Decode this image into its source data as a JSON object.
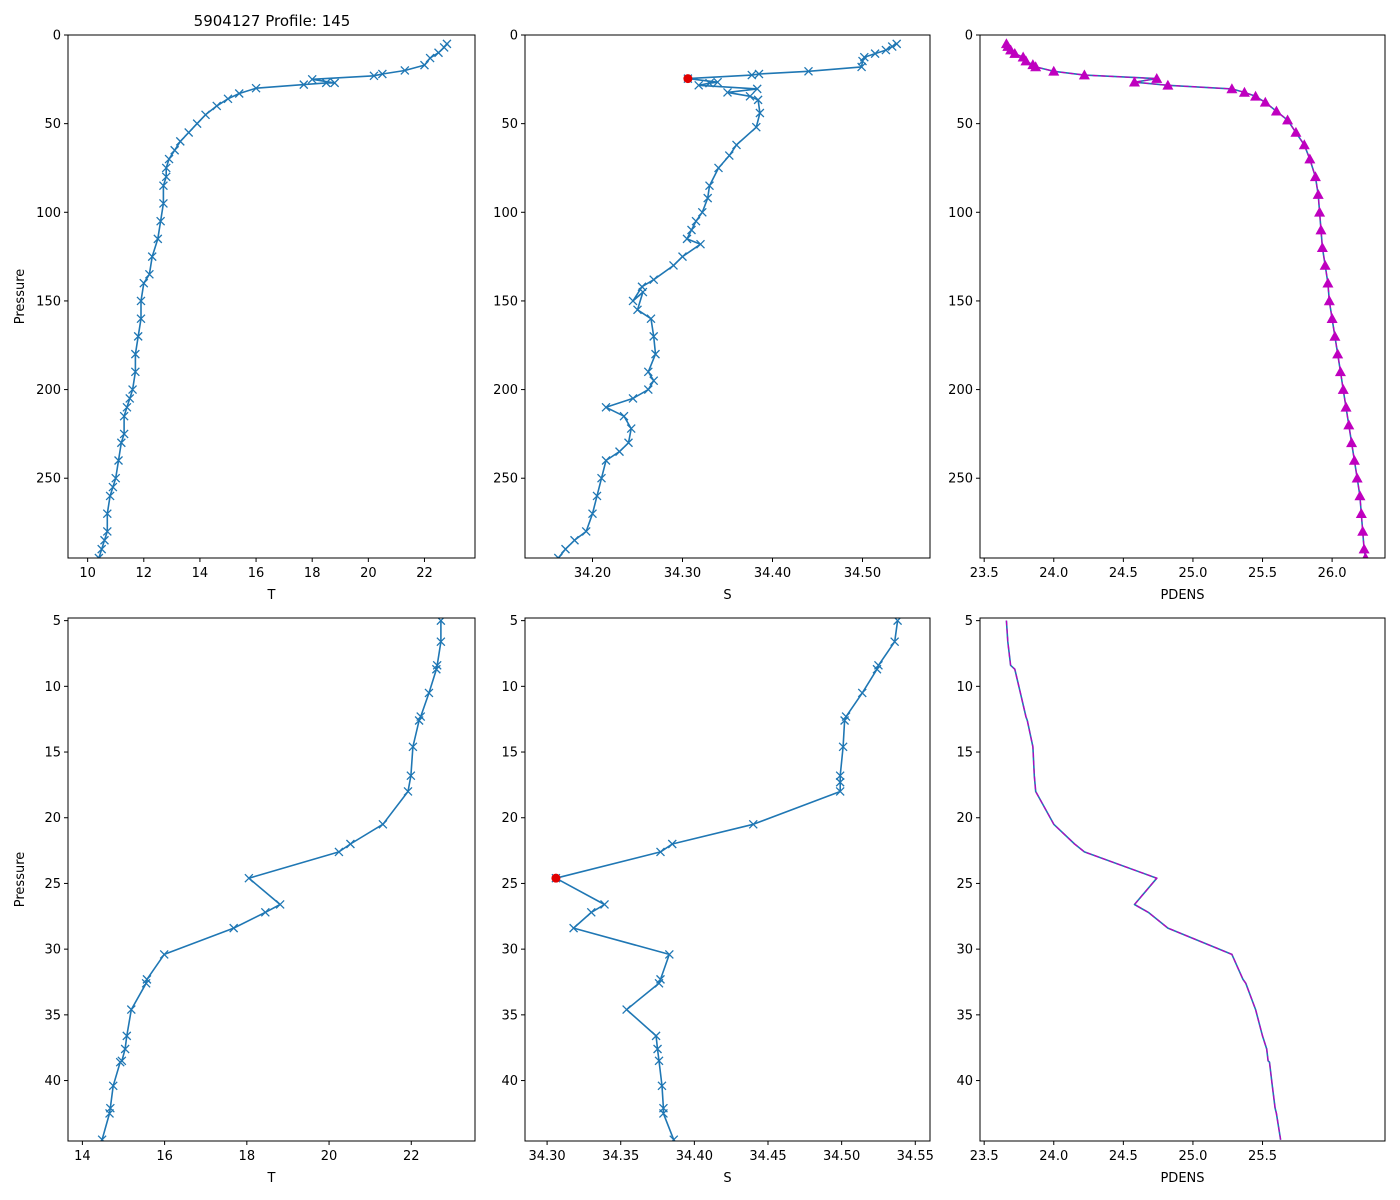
{
  "figure_title": "5904127 Profile: 145",
  "colors": {
    "line": "#1f77b4",
    "highlight": "#e00000",
    "pdens_marker": "#bf00bf"
  },
  "chart_data": [
    {
      "id": "top-T",
      "type": "line",
      "marker": "x",
      "title": "5904127 Profile: 145",
      "xlabel": "T",
      "ylabel": "Pressure",
      "xlim": [
        9.3,
        23.8
      ],
      "ylim": [
        295,
        0
      ],
      "y_inverted": true,
      "xticks": [
        10,
        12,
        14,
        16,
        18,
        20,
        22
      ],
      "yticks": [
        0,
        50,
        100,
        150,
        200,
        250
      ],
      "series": [
        {
          "name": "T",
          "x": [
            22.8,
            22.7,
            22.5,
            22.2,
            22.0,
            21.3,
            20.5,
            20.2,
            18.0,
            18.8,
            18.5,
            17.7,
            16.0,
            15.4,
            15.0,
            14.6,
            14.2,
            13.9,
            13.6,
            13.3,
            13.1,
            12.9,
            12.8,
            12.8,
            12.7,
            12.7,
            12.6,
            12.5,
            12.3,
            12.2,
            12.0,
            11.9,
            11.9,
            11.8,
            11.7,
            11.7,
            11.6,
            11.5,
            11.4,
            11.3,
            11.3,
            11.2,
            11.1,
            11.0,
            10.9,
            10.8,
            10.7,
            10.7,
            10.6,
            10.5,
            10.4
          ],
          "y": [
            5,
            7,
            10,
            13,
            17,
            20,
            22,
            23,
            25,
            27,
            27,
            28,
            30,
            33,
            36,
            40,
            45,
            50,
            55,
            60,
            65,
            70,
            75,
            80,
            85,
            95,
            105,
            115,
            125,
            135,
            140,
            150,
            160,
            170,
            180,
            190,
            200,
            205,
            210,
            215,
            225,
            230,
            240,
            250,
            255,
            260,
            270,
            280,
            285,
            290,
            295
          ]
        }
      ]
    },
    {
      "id": "top-S",
      "type": "line",
      "marker": "x",
      "xlabel": "S",
      "ylabel": "",
      "xlim": [
        34.125,
        34.575
      ],
      "ylim": [
        295,
        0
      ],
      "y_inverted": true,
      "xticks": [
        34.2,
        34.3,
        34.4,
        34.5
      ],
      "yticks": [
        0,
        50,
        100,
        150,
        200,
        250
      ],
      "highlight_point": {
        "x": 34.306,
        "y": 24.6
      },
      "series": [
        {
          "name": "S",
          "x": [
            34.538,
            34.533,
            34.526,
            34.514,
            34.502,
            34.5,
            34.499,
            34.44,
            34.385,
            34.377,
            34.306,
            34.339,
            34.33,
            34.318,
            34.383,
            34.35,
            34.375,
            34.384,
            34.386,
            34.382,
            34.36,
            34.352,
            34.34,
            34.33,
            34.328,
            34.322,
            34.315,
            34.31,
            34.305,
            34.32,
            34.3,
            34.29,
            34.268,
            34.255,
            34.245,
            34.256,
            34.25,
            34.265,
            34.268,
            34.27,
            34.262,
            34.268,
            34.262,
            34.245,
            34.215,
            34.235,
            34.243,
            34.24,
            34.23,
            34.215,
            34.21,
            34.205,
            34.2,
            34.193,
            34.18,
            34.17,
            34.162
          ],
          "y": [
            5,
            6.5,
            8.5,
            10.5,
            12.5,
            14.7,
            18,
            20.5,
            22,
            22.6,
            24.6,
            26.6,
            27.2,
            28.4,
            30.4,
            32.4,
            34.6,
            36.6,
            44,
            52,
            62,
            68,
            75,
            85,
            92,
            100,
            105,
            110,
            115,
            118,
            125,
            130,
            138,
            142,
            150,
            145,
            155,
            160,
            170,
            180,
            190,
            195,
            200,
            205,
            210,
            215,
            222,
            230,
            235,
            240,
            250,
            260,
            270,
            280,
            285,
            290,
            295
          ]
        }
      ]
    },
    {
      "id": "top-PDENS",
      "type": "line",
      "marker": "triangle",
      "xlabel": "PDENS",
      "ylabel": "",
      "xlim": [
        23.47,
        26.38
      ],
      "ylim": [
        295,
        0
      ],
      "y_inverted": true,
      "xticks": [
        23.5,
        24.0,
        24.5,
        25.0,
        25.5,
        26.0
      ],
      "yticks": [
        0,
        50,
        100,
        150,
        200,
        250
      ],
      "series": [
        {
          "name": "PDENS",
          "x": [
            23.66,
            23.67,
            23.69,
            23.72,
            23.78,
            23.8,
            23.85,
            23.87,
            24.0,
            24.22,
            24.74,
            24.58,
            24.82,
            25.28,
            25.37,
            25.45,
            25.52,
            25.6,
            25.68,
            25.74,
            25.8,
            25.84,
            25.88,
            25.9,
            25.91,
            25.92,
            25.93,
            25.95,
            25.97,
            25.98,
            26.0,
            26.02,
            26.04,
            26.06,
            26.08,
            26.1,
            26.12,
            26.14,
            26.16,
            26.18,
            26.2,
            26.21,
            26.22,
            26.23,
            26.24
          ],
          "y": [
            5,
            6.5,
            8.5,
            10.5,
            12.5,
            14.7,
            16.8,
            18,
            20.5,
            22.6,
            24.6,
            26.6,
            28.4,
            30.4,
            32.4,
            34.6,
            38,
            43,
            48,
            55,
            62,
            70,
            80,
            90,
            100,
            110,
            120,
            130,
            140,
            150,
            160,
            170,
            180,
            190,
            200,
            210,
            220,
            230,
            240,
            250,
            260,
            270,
            280,
            290,
            295
          ]
        }
      ]
    },
    {
      "id": "bottom-T",
      "type": "line",
      "marker": "x",
      "xlabel": "T",
      "ylabel": "Pressure",
      "xlim": [
        13.65,
        23.55
      ],
      "ylim": [
        44.6,
        4.8
      ],
      "y_inverted": true,
      "xticks": [
        14,
        16,
        18,
        20,
        22
      ],
      "yticks": [
        5,
        10,
        15,
        20,
        25,
        30,
        35,
        40
      ],
      "series": [
        {
          "name": "T",
          "x": [
            22.72,
            22.72,
            22.63,
            22.61,
            22.43,
            22.23,
            22.19,
            22.04,
            21.99,
            21.92,
            21.31,
            20.52,
            20.24,
            18.05,
            18.81,
            18.45,
            17.68,
            15.99,
            15.57,
            15.55,
            15.19,
            15.08,
            15.04,
            14.96,
            14.92,
            14.75,
            14.68,
            14.66,
            14.48
          ],
          "y": [
            5.0,
            6.6,
            8.4,
            8.7,
            10.5,
            12.3,
            12.6,
            14.6,
            16.8,
            18.0,
            20.5,
            22.0,
            22.6,
            24.6,
            26.6,
            27.2,
            28.4,
            30.4,
            32.3,
            32.6,
            34.6,
            36.6,
            37.6,
            38.5,
            38.6,
            40.4,
            42.1,
            42.5,
            44.5
          ]
        }
      ]
    },
    {
      "id": "bottom-S",
      "type": "line",
      "marker": "x",
      "xlabel": "S",
      "ylabel": "",
      "xlim": [
        34.285,
        34.56
      ],
      "ylim": [
        44.6,
        4.8
      ],
      "y_inverted": true,
      "xticks": [
        34.3,
        34.35,
        34.4,
        34.45,
        34.5,
        34.55
      ],
      "yticks": [
        5,
        10,
        15,
        20,
        25,
        30,
        35,
        40
      ],
      "highlight_point": {
        "x": 34.306,
        "y": 24.6
      },
      "series": [
        {
          "name": "S",
          "x": [
            34.538,
            34.536,
            34.525,
            34.524,
            34.514,
            34.503,
            34.502,
            34.501,
            34.499,
            34.499,
            34.499,
            34.44,
            34.385,
            34.377,
            34.306,
            34.339,
            34.33,
            34.318,
            34.383,
            34.377,
            34.376,
            34.354,
            34.374,
            34.375,
            34.376,
            34.378,
            34.379,
            34.379,
            34.386
          ],
          "y": [
            5.0,
            6.6,
            8.4,
            8.7,
            10.5,
            12.3,
            12.6,
            14.6,
            16.8,
            17.3,
            18.0,
            20.5,
            22.0,
            22.6,
            24.6,
            26.6,
            27.2,
            28.4,
            30.4,
            32.3,
            32.6,
            34.6,
            36.6,
            37.6,
            38.5,
            40.4,
            42.1,
            42.5,
            44.5
          ]
        }
      ]
    },
    {
      "id": "bottom-PDENS",
      "type": "line",
      "marker": "none",
      "xlabel": "PDENS",
      "ylabel": "",
      "xlim": [
        23.47,
        26.38
      ],
      "ylim": [
        44.6,
        4.8
      ],
      "y_inverted": true,
      "xticks": [
        23.5,
        24.0,
        24.5,
        25.0,
        25.5
      ],
      "yticks": [
        5,
        10,
        15,
        20,
        25,
        30,
        35,
        40
      ],
      "series": [
        {
          "name": "PDENS",
          "x": [
            23.66,
            23.67,
            23.69,
            23.72,
            23.76,
            23.8,
            23.81,
            23.85,
            23.86,
            23.87,
            24.0,
            24.15,
            24.22,
            24.74,
            24.58,
            24.68,
            24.82,
            25.28,
            25.36,
            25.38,
            25.45,
            25.5,
            25.53,
            25.54,
            25.55,
            25.57,
            25.59,
            25.6,
            25.63
          ],
          "y": [
            5.0,
            6.6,
            8.4,
            8.7,
            10.5,
            12.3,
            12.6,
            14.6,
            16.8,
            18.0,
            20.5,
            22.0,
            22.6,
            24.6,
            26.6,
            27.2,
            28.4,
            30.4,
            32.3,
            32.6,
            34.6,
            36.6,
            37.6,
            38.5,
            38.6,
            40.4,
            42.1,
            42.5,
            44.5
          ]
        }
      ]
    }
  ]
}
